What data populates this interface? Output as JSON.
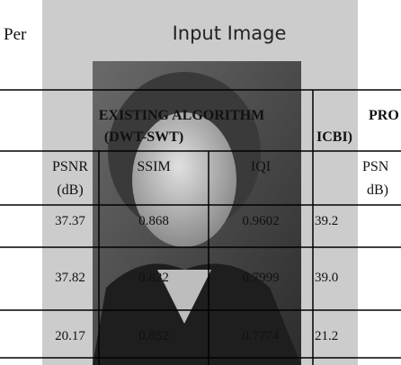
{
  "page": {
    "heading_fragment": "Per"
  },
  "window": {
    "title": "Input Image"
  },
  "table": {
    "header": {
      "existing": [
        "EXISTING ALGORITHM",
        "(DWT-SWT)"
      ],
      "proposed": [
        "PRO",
        "ICBI)"
      ]
    },
    "subheader": [
      [
        "PSNR",
        "(dB)"
      ],
      [
        "SSIM"
      ],
      [
        "IQI"
      ],
      [
        "PSN",
        "dB)"
      ]
    ],
    "rows": [
      [
        "37.37",
        "0.868",
        "0.9602",
        "39.2"
      ],
      [
        "37.82",
        "0.822",
        "0.7999",
        "39.0"
      ],
      [
        "20.17",
        "0.852",
        "0.7774",
        "21.2"
      ]
    ]
  }
}
